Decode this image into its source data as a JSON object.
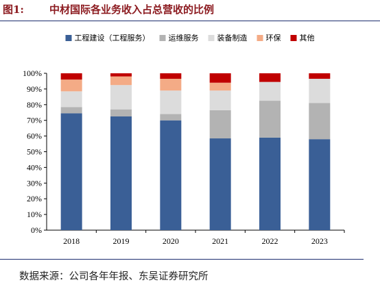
{
  "header": {
    "figure_number": "图1:",
    "title": "中材国际各业务收入占总营收的比例"
  },
  "source_note": "数据来源：公司各年年报、东吴证券研究所",
  "chart_data": {
    "type": "bar",
    "stacked": true,
    "title": "中材国际各业务收入占总营收的比例",
    "xlabel": "",
    "ylabel": "",
    "categories": [
      "2018",
      "2019",
      "2020",
      "2021",
      "2022",
      "2023"
    ],
    "ylim": [
      0,
      100
    ],
    "yticks": [
      "0%",
      "10%",
      "20%",
      "30%",
      "40%",
      "50%",
      "60%",
      "70%",
      "80%",
      "90%",
      "100%"
    ],
    "grid": false,
    "legend_position": "top",
    "series": [
      {
        "name": "工程建设（工程服务）",
        "color": "#3a5f96",
        "values": [
          74.5,
          72.5,
          70,
          58.5,
          59,
          58
        ]
      },
      {
        "name": "运维服务",
        "color": "#b3b3b3",
        "values": [
          4,
          4.5,
          4,
          18,
          23.5,
          23
        ]
      },
      {
        "name": "装备制造",
        "color": "#dcdcdc",
        "values": [
          10,
          15.5,
          15,
          12.5,
          12,
          15.5
        ]
      },
      {
        "name": "环保",
        "color": "#f4ab86",
        "values": [
          7.5,
          5.5,
          7.5,
          5,
          0,
          0
        ]
      },
      {
        "name": "其他",
        "color": "#c00000",
        "values": [
          4,
          2,
          3.5,
          6,
          5.5,
          3.5
        ]
      }
    ]
  }
}
